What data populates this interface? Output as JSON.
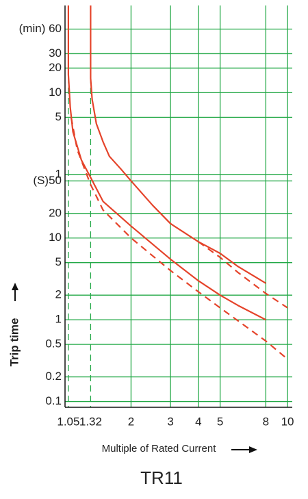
{
  "chart_data": {
    "type": "line",
    "title": "TR11",
    "x_label": "Multiple of Rated Current",
    "y_label": "Trip time",
    "log_x": true,
    "log_y": true,
    "grid": true,
    "xlim": [
      1,
      10.5
    ],
    "ylim": [
      0.085,
      7000
    ],
    "xticks": [
      1.05,
      1.32,
      2,
      3,
      4,
      5,
      8,
      10
    ],
    "yticks": [
      {
        "value": 3600,
        "label": "(min) 60"
      },
      {
        "value": 1800,
        "label": "30"
      },
      {
        "value": 1200,
        "label": "20"
      },
      {
        "value": 600,
        "label": "10"
      },
      {
        "value": 300,
        "label": "5"
      },
      {
        "value": 60,
        "label": "1"
      },
      {
        "value": 50,
        "label": "(S)50"
      },
      20,
      10,
      5,
      2,
      1,
      0.5,
      0.2,
      0.1
    ],
    "series": [
      {
        "color": "#e5432a",
        "dashed": false,
        "x": [
          1.32,
          1.32,
          1.34,
          1.4,
          1.5,
          1.6,
          1.8,
          2,
          2.5,
          3,
          4,
          5,
          6,
          8
        ],
        "values": [
          7000,
          900,
          500,
          250,
          150,
          100,
          70,
          50,
          25,
          15,
          9,
          6.5,
          4.5,
          2.8
        ]
      },
      {
        "color": "#e5432a",
        "dashed": false,
        "x": [
          1.05,
          1.05,
          1.07,
          1.1,
          1.2,
          1.32,
          1.5,
          2,
          3,
          4,
          5,
          6,
          8
        ],
        "values": [
          7000,
          1000,
          400,
          200,
          90,
          55,
          28,
          14,
          5.5,
          3,
          2,
          1.5,
          1
        ]
      },
      {
        "color": "#e5432a",
        "dashed": true,
        "x": [
          1.08,
          1.15,
          1.32,
          1.5,
          2,
          3,
          4,
          5,
          8,
          10
        ],
        "values": [
          300,
          120,
          45,
          22,
          10,
          4,
          2.2,
          1.4,
          0.55,
          0.33
        ]
      },
      {
        "color": "#e5432a",
        "dashed": true,
        "x": [
          4,
          5,
          6,
          8,
          10
        ],
        "values": [
          9,
          5.8,
          3.8,
          2.1,
          1.4
        ]
      }
    ]
  }
}
